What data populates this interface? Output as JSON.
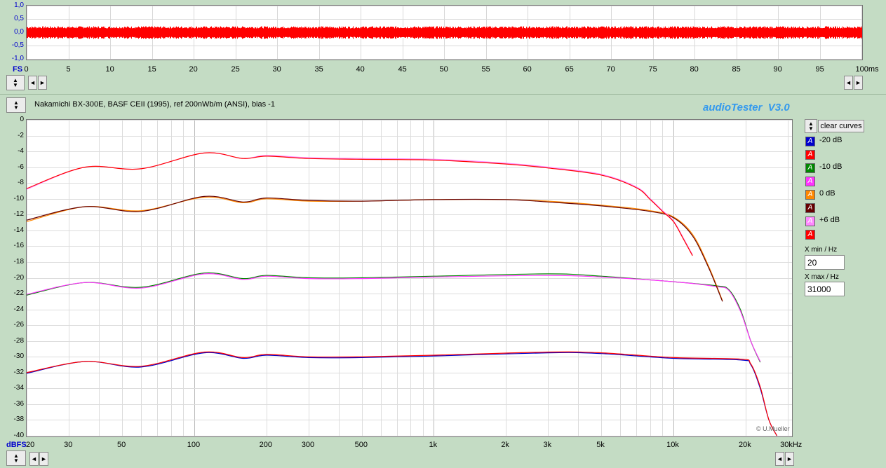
{
  "brand": "audioTester  V3.0",
  "copyright": "© U.Mueller",
  "scope": {
    "unit_label": "FS",
    "y_ticks": [
      "1,0",
      "0,5",
      "0,0",
      "-0,5",
      "-1,0"
    ],
    "x_ticks": [
      "0",
      "5",
      "10",
      "15",
      "20",
      "25",
      "30",
      "35",
      "40",
      "45",
      "50",
      "55",
      "60",
      "65",
      "70",
      "75",
      "80",
      "85",
      "90",
      "95",
      "100ms"
    ],
    "color": "#ff0000"
  },
  "title": "Nakamichi BX-300E, BASF CEII (1995), ref 200nWb/m (ANSI), bias -1",
  "legend": {
    "clear_label": "clear curves",
    "items": [
      {
        "label": "-20 dB",
        "color": "#0000cc"
      },
      {
        "label": "",
        "color": "#ff0000"
      },
      {
        "label": "-10 dB",
        "color": "#008800"
      },
      {
        "label": "",
        "color": "#ff33ff"
      },
      {
        "label": "0 dB",
        "color": "#ff8800"
      },
      {
        "label": "",
        "color": "#660000"
      },
      {
        "label": "+6 dB",
        "color": "#ff88ff"
      },
      {
        "label": "",
        "color": "#ff0000"
      }
    ],
    "swatch_glyph": "A"
  },
  "xmin": {
    "label": "X min / Hz",
    "value": "20"
  },
  "xmax": {
    "label": "X max / Hz",
    "value": "31000"
  },
  "chart_data": {
    "type": "line",
    "xscale": "log",
    "xlim": [
      20,
      31000
    ],
    "ylim": [
      -40,
      0
    ],
    "ylabel": "dBFS",
    "x_ticks": [
      20,
      30,
      50,
      100,
      200,
      300,
      500,
      1000,
      2000,
      3000,
      5000,
      10000,
      20000,
      30000
    ],
    "x_tick_labels": [
      "20",
      "30",
      "50",
      "100",
      "200",
      "300",
      "500",
      "1k",
      "2k",
      "3k",
      "5k",
      "10k",
      "20k",
      "30kHz"
    ],
    "y_ticks": [
      0,
      -2,
      -4,
      -6,
      -8,
      -10,
      -12,
      -14,
      -16,
      -18,
      -20,
      -22,
      -24,
      -26,
      -28,
      -30,
      -32,
      -34,
      -36,
      -38,
      -40
    ],
    "y_unit": "dBFS",
    "grid": true,
    "series": [
      {
        "name": "-20 dB",
        "color": "#0000cc",
        "points": [
          [
            20,
            -32.1
          ],
          [
            35,
            -30.6
          ],
          [
            60,
            -31.3
          ],
          [
            110,
            -29.5
          ],
          [
            160,
            -30.2
          ],
          [
            200,
            -29.8
          ],
          [
            300,
            -30.1
          ],
          [
            500,
            -30.1
          ],
          [
            1000,
            -29.9
          ],
          [
            3000,
            -29.5
          ],
          [
            5000,
            -29.6
          ],
          [
            10000,
            -30.2
          ],
          [
            19000,
            -30.4
          ],
          [
            21000,
            -31
          ],
          [
            23000,
            -34
          ],
          [
            25000,
            -38
          ],
          [
            27000,
            -40
          ]
        ]
      },
      {
        "name": "",
        "color": "#ff0000",
        "points": [
          [
            20,
            -32.0
          ],
          [
            35,
            -30.6
          ],
          [
            60,
            -31.2
          ],
          [
            110,
            -29.4
          ],
          [
            160,
            -30.1
          ],
          [
            200,
            -29.7
          ],
          [
            300,
            -30.0
          ],
          [
            500,
            -30.0
          ],
          [
            1000,
            -29.8
          ],
          [
            3000,
            -29.4
          ],
          [
            5000,
            -29.5
          ],
          [
            10000,
            -30.1
          ],
          [
            19000,
            -30.3
          ],
          [
            21000,
            -30.9
          ],
          [
            23000,
            -33.8
          ],
          [
            25000,
            -38
          ],
          [
            27000,
            -40
          ]
        ]
      },
      {
        "name": "-10 dB",
        "color": "#008800",
        "points": [
          [
            20,
            -22.2
          ],
          [
            35,
            -20.6
          ],
          [
            60,
            -21.2
          ],
          [
            110,
            -19.4
          ],
          [
            160,
            -20.1
          ],
          [
            200,
            -19.7
          ],
          [
            300,
            -20.0
          ],
          [
            500,
            -20.0
          ],
          [
            1000,
            -19.8
          ],
          [
            3000,
            -19.5
          ],
          [
            5000,
            -19.8
          ],
          [
            10000,
            -20.5
          ],
          [
            15000,
            -21.0
          ],
          [
            17000,
            -21.5
          ],
          [
            19000,
            -24
          ],
          [
            21000,
            -28
          ],
          [
            23000,
            -30.7
          ]
        ]
      },
      {
        "name": "",
        "color": "#ff33ff",
        "points": [
          [
            20,
            -22.1
          ],
          [
            35,
            -20.6
          ],
          [
            60,
            -21.3
          ],
          [
            110,
            -19.5
          ],
          [
            160,
            -20.2
          ],
          [
            200,
            -19.8
          ],
          [
            300,
            -20.1
          ],
          [
            500,
            -20.1
          ],
          [
            1000,
            -19.9
          ],
          [
            3000,
            -19.7
          ],
          [
            5000,
            -19.9
          ],
          [
            10000,
            -20.5
          ],
          [
            15000,
            -21.1
          ],
          [
            17000,
            -21.6
          ],
          [
            19000,
            -24.2
          ],
          [
            21000,
            -28
          ],
          [
            23000,
            -30.6
          ]
        ]
      },
      {
        "name": "0 dB",
        "color": "#ff8800",
        "points": [
          [
            20,
            -12.9
          ],
          [
            35,
            -11.0
          ],
          [
            60,
            -11.5
          ],
          [
            110,
            -9.8
          ],
          [
            160,
            -10.5
          ],
          [
            200,
            -10.0
          ],
          [
            300,
            -10.3
          ],
          [
            500,
            -10.3
          ],
          [
            1000,
            -10.1
          ],
          [
            2000,
            -10.1
          ],
          [
            3000,
            -10.3
          ],
          [
            5000,
            -10.8
          ],
          [
            8000,
            -11.5
          ],
          [
            10000,
            -12.3
          ],
          [
            12000,
            -14.5
          ],
          [
            14000,
            -18.5
          ],
          [
            16000,
            -22.9
          ]
        ]
      },
      {
        "name": "",
        "color": "#660000",
        "points": [
          [
            20,
            -12.7
          ],
          [
            35,
            -11.0
          ],
          [
            60,
            -11.6
          ],
          [
            110,
            -9.7
          ],
          [
            160,
            -10.4
          ],
          [
            200,
            -9.9
          ],
          [
            300,
            -10.2
          ],
          [
            500,
            -10.3
          ],
          [
            1000,
            -10.1
          ],
          [
            2000,
            -10.1
          ],
          [
            3000,
            -10.4
          ],
          [
            5000,
            -10.9
          ],
          [
            8000,
            -11.6
          ],
          [
            10000,
            -12.4
          ],
          [
            12000,
            -14.7
          ],
          [
            14000,
            -18.7
          ],
          [
            16000,
            -23.0
          ]
        ]
      },
      {
        "name": "+6 dB",
        "color": "#ff88ff",
        "points": [
          [
            20,
            -8.8
          ],
          [
            35,
            -6.0
          ],
          [
            60,
            -6.2
          ],
          [
            110,
            -4.2
          ],
          [
            160,
            -4.9
          ],
          [
            200,
            -4.5
          ],
          [
            300,
            -4.8
          ],
          [
            500,
            -4.9
          ],
          [
            1000,
            -5.0
          ],
          [
            2000,
            -5.5
          ],
          [
            3000,
            -6.0
          ],
          [
            5000,
            -6.9
          ],
          [
            7000,
            -8.5
          ],
          [
            8000,
            -10.0
          ],
          [
            9000,
            -11.5
          ],
          [
            10000,
            -12.8
          ],
          [
            11000,
            -15
          ],
          [
            12000,
            -17.1
          ]
        ]
      },
      {
        "name": "",
        "color": "#ff0000",
        "points": [
          [
            20,
            -8.7
          ],
          [
            35,
            -6.0
          ],
          [
            60,
            -6.2
          ],
          [
            110,
            -4.2
          ],
          [
            160,
            -4.9
          ],
          [
            200,
            -4.6
          ],
          [
            300,
            -4.9
          ],
          [
            500,
            -5.0
          ],
          [
            1000,
            -5.1
          ],
          [
            2000,
            -5.6
          ],
          [
            3000,
            -6.1
          ],
          [
            5000,
            -7.0
          ],
          [
            7000,
            -8.6
          ],
          [
            8000,
            -10.1
          ],
          [
            9000,
            -11.6
          ],
          [
            10000,
            -12.9
          ],
          [
            11000,
            -15.1
          ],
          [
            12000,
            -17.2
          ]
        ]
      }
    ]
  }
}
